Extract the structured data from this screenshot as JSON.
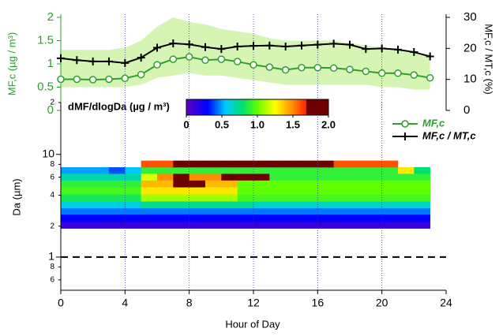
{
  "chart_data": [
    {
      "type": "line",
      "ylabel": "MF,c (µg / m³)",
      "y2label": "MF,c / MT,c (%)",
      "x": [
        0,
        1,
        2,
        3,
        4,
        5,
        6,
        7,
        8,
        9,
        10,
        11,
        12,
        13,
        14,
        15,
        16,
        17,
        18,
        19,
        20,
        21,
        22,
        23
      ],
      "xlim": [
        0,
        24
      ],
      "ylim": [
        0,
        2
      ],
      "yticks": [
        0,
        0.5,
        1,
        1.5,
        2
      ],
      "y2lim": [
        0,
        30
      ],
      "y2ticks": [
        0,
        10,
        20,
        30
      ],
      "series": [
        {
          "name": "MF,c",
          "color": "#2ca02c",
          "marker": "circle",
          "values": [
            0.67,
            0.67,
            0.66,
            0.67,
            0.69,
            0.77,
            0.98,
            1.1,
            1.15,
            1.08,
            1.1,
            1.05,
            0.98,
            0.93,
            0.87,
            0.92,
            0.92,
            0.91,
            0.88,
            0.84,
            0.8,
            0.8,
            0.76,
            0.7
          ]
        },
        {
          "name": "MF,c / MT,c",
          "color": "#000000",
          "marker": "plus",
          "axis": "y2",
          "values": [
            16.8,
            16.2,
            15.8,
            15.8,
            15.3,
            17.0,
            20.2,
            21.6,
            21.3,
            20.4,
            19.8,
            20.6,
            20.8,
            20.9,
            20.6,
            20.9,
            21.2,
            21.5,
            21.2,
            19.8,
            20.0,
            19.6,
            18.8,
            17.4
          ]
        }
      ],
      "band": {
        "color": "#d6f5b4",
        "upper": [
          1.3,
          1.3,
          1.3,
          1.3,
          1.35,
          1.5,
          1.8,
          2.0,
          1.9,
          1.85,
          1.75,
          1.7,
          1.65,
          1.55,
          1.5,
          1.5,
          1.5,
          1.5,
          1.45,
          1.4,
          1.35,
          1.3,
          1.25,
          1.2
        ],
        "lower": [
          0.5,
          0.5,
          0.5,
          0.5,
          0.5,
          0.55,
          0.7,
          0.75,
          0.8,
          0.75,
          0.75,
          0.7,
          0.65,
          0.6,
          0.55,
          0.55,
          0.55,
          0.55,
          0.55,
          0.55,
          0.5,
          0.5,
          0.45,
          0.45
        ]
      }
    },
    {
      "type": "heatmap",
      "xlabel": "Hour of Day",
      "ylabel": "Da (µm)",
      "xlim": [
        0,
        24
      ],
      "xticks": [
        0,
        4,
        8,
        12,
        16,
        20,
        24
      ],
      "grid_color": "#3333cc",
      "log_y": true,
      "ylim": [
        0.475,
        32
      ],
      "yticks": [
        {
          "value": 32,
          "label": "2"
        },
        10,
        8,
        6,
        4,
        2,
        1,
        {
          "value": 0.8,
          "label": "8"
        },
        {
          "value": 0.6,
          "label": "6"
        }
      ],
      "reference_line": 1,
      "x_edges": [
        0,
        1,
        2,
        3,
        4,
        5,
        6,
        7,
        8,
        9,
        10,
        11,
        12,
        13,
        14,
        15,
        16,
        17,
        18,
        19,
        20,
        21,
        22,
        23
      ],
      "y_edges": [
        1.9,
        2.2,
        2.6,
        3.0,
        3.5,
        4.1,
        4.8,
        5.6,
        6.5,
        7.5,
        8.7
      ],
      "values": [
        [
          0.12,
          0.12,
          0.12,
          0.12,
          0.12,
          0.12,
          0.12,
          0.12,
          0.12,
          0.12,
          0.12,
          0.12,
          0.12,
          0.12,
          0.12,
          0.12,
          0.12,
          0.12,
          0.12,
          0.12,
          0.12,
          0.12,
          0.12
        ],
        [
          0.3,
          0.3,
          0.3,
          0.3,
          0.3,
          0.3,
          0.3,
          0.3,
          0.3,
          0.3,
          0.3,
          0.3,
          0.3,
          0.3,
          0.3,
          0.3,
          0.3,
          0.3,
          0.3,
          0.3,
          0.3,
          0.3,
          0.3
        ],
        [
          0.45,
          0.45,
          0.45,
          0.45,
          0.45,
          0.45,
          0.45,
          0.45,
          0.45,
          0.45,
          0.45,
          0.45,
          0.45,
          0.45,
          0.45,
          0.45,
          0.45,
          0.45,
          0.45,
          0.45,
          0.45,
          0.45,
          0.45
        ],
        [
          0.6,
          0.6,
          0.6,
          0.6,
          0.6,
          0.75,
          0.75,
          0.75,
          0.75,
          0.75,
          0.75,
          0.75,
          0.65,
          0.65,
          0.65,
          0.65,
          0.65,
          0.65,
          0.65,
          0.65,
          0.65,
          0.65,
          0.65
        ],
        [
          0.85,
          0.85,
          0.85,
          0.85,
          0.85,
          1.1,
          1.1,
          1.1,
          1.1,
          1.1,
          1.1,
          0.95,
          0.95,
          0.95,
          0.95,
          0.95,
          0.95,
          0.95,
          0.95,
          0.95,
          0.95,
          0.95,
          0.95
        ],
        [
          0.95,
          0.95,
          0.95,
          0.95,
          0.95,
          1.3,
          1.3,
          1.3,
          1.3,
          1.3,
          1.3,
          1.0,
          1.0,
          1.0,
          1.0,
          1.0,
          1.0,
          1.0,
          1.0,
          1.0,
          1.0,
          1.0,
          1.0
        ],
        [
          0.9,
          0.9,
          0.9,
          0.9,
          0.9,
          1.4,
          1.4,
          1.9,
          1.9,
          1.4,
          1.4,
          1.0,
          1.0,
          1.0,
          1.0,
          1.0,
          1.0,
          1.0,
          1.0,
          1.0,
          1.0,
          1.0,
          1.0
        ],
        [
          0.7,
          0.7,
          0.7,
          0.7,
          0.7,
          1.2,
          1.5,
          1.7,
          1.5,
          1.5,
          1.7,
          1.7,
          1.7,
          0.9,
          0.9,
          0.9,
          0.9,
          0.9,
          0.9,
          0.9,
          0.9,
          0.9,
          0.9
        ],
        [
          0.5,
          0.5,
          0.5,
          0.4,
          0.55,
          0.9,
          0.9,
          0.9,
          0.9,
          0.9,
          0.9,
          0.9,
          0.9,
          0.9,
          0.9,
          0.9,
          0.9,
          0.9,
          0.9,
          0.9,
          0.9,
          1.3,
          0.8
        ],
        [
          null,
          null,
          null,
          null,
          null,
          1.6,
          1.6,
          2.0,
          2.0,
          2.0,
          2.0,
          2.0,
          2.0,
          2.0,
          2.0,
          2.0,
          2.0,
          1.6,
          1.6,
          1.6,
          1.6,
          null,
          null
        ]
      ],
      "colorbar": {
        "title": "dMF/dlogDa (µg / m³)",
        "lim": [
          0,
          2
        ],
        "ticks": [
          0,
          0.5,
          {
            "value": 1,
            "label": "1.0"
          },
          1.5,
          {
            "value": 2,
            "label": "2.0"
          }
        ],
        "colors": [
          "#6000c0",
          "#0000ff",
          "#00c8ff",
          "#00e070",
          "#60ff00",
          "#ffff00",
          "#ff8c00",
          "#ff1e00",
          "#6e0000",
          "#6e0000"
        ],
        "stops": [
          0,
          0.3,
          0.55,
          0.8,
          1.0,
          1.25,
          1.5,
          1.69,
          1.7,
          2
        ]
      }
    }
  ]
}
